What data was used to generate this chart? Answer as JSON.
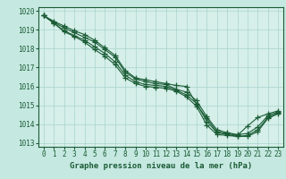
{
  "title": "Graphe pression niveau de la mer (hPa)",
  "background_color": "#c5e8e0",
  "plot_bg_color": "#d6efe9",
  "grid_color": "#a8d5cc",
  "line_color": "#1a5c35",
  "xlim": [
    -0.5,
    23.5
  ],
  "ylim": [
    1012.8,
    1020.2
  ],
  "xticks": [
    0,
    1,
    2,
    3,
    4,
    5,
    6,
    7,
    8,
    9,
    10,
    11,
    12,
    13,
    14,
    15,
    16,
    17,
    18,
    19,
    20,
    21,
    22,
    23
  ],
  "yticks": [
    1013,
    1014,
    1015,
    1016,
    1017,
    1018,
    1019,
    1020
  ],
  "lines": [
    [
      1019.75,
      1019.45,
      1019.2,
      1018.95,
      1018.75,
      1018.45,
      1018.05,
      1017.65,
      1016.85,
      1016.45,
      1016.35,
      1016.25,
      1016.15,
      1016.05,
      1016.0,
      1015.05,
      1014.3,
      1013.6,
      1013.5,
      1013.4,
      1013.9,
      1014.35,
      1014.55,
      1014.7
    ],
    [
      1019.75,
      1019.4,
      1019.1,
      1018.85,
      1018.6,
      1018.35,
      1017.95,
      1017.55,
      1016.75,
      1016.4,
      1016.25,
      1016.15,
      1016.1,
      1015.85,
      1015.7,
      1015.25,
      1014.4,
      1013.7,
      1013.55,
      1013.45,
      1013.5,
      1013.85,
      1014.45,
      1014.65
    ],
    [
      1019.75,
      1019.35,
      1018.95,
      1018.7,
      1018.45,
      1018.1,
      1017.75,
      1017.3,
      1016.6,
      1016.25,
      1016.1,
      1016.05,
      1016.0,
      1015.8,
      1015.55,
      1015.1,
      1014.15,
      1013.55,
      1013.45,
      1013.35,
      1013.4,
      1013.7,
      1014.35,
      1014.6
    ],
    [
      1019.75,
      1019.35,
      1018.9,
      1018.65,
      1018.35,
      1017.95,
      1017.6,
      1017.15,
      1016.45,
      1016.15,
      1016.0,
      1015.95,
      1015.9,
      1015.75,
      1015.45,
      1014.95,
      1013.95,
      1013.45,
      1013.4,
      1013.35,
      1013.35,
      1013.6,
      1014.3,
      1014.55
    ]
  ]
}
